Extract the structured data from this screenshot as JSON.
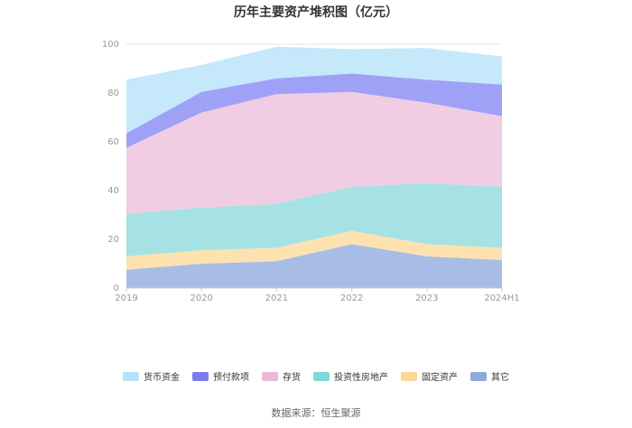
{
  "chart_data": {
    "type": "area",
    "title": "历年主要资产堆积图（亿元）",
    "categories": [
      "2019",
      "2020",
      "2021",
      "2022",
      "2023",
      "2024H1"
    ],
    "ylim": [
      0,
      100
    ],
    "yticks": [
      "0",
      "20",
      "40",
      "60",
      "80",
      "100"
    ],
    "stacked": true,
    "grid": true,
    "legend_position": "bottom",
    "series": [
      {
        "name": "其它",
        "values": [
          7.5,
          10.0,
          11.0,
          18.0,
          13.0,
          11.5
        ],
        "color": "#a8bde6"
      },
      {
        "name": "固定资产",
        "values": [
          5.5,
          5.5,
          5.5,
          5.5,
          5.0,
          5.0
        ],
        "color": "#fde2b0"
      },
      {
        "name": "投资性房地产",
        "values": [
          17.5,
          17.5,
          18.0,
          18.0,
          25.0,
          25.0
        ],
        "color": "#a6e2e3"
      },
      {
        "name": "存货",
        "values": [
          27.0,
          39.0,
          45.0,
          39.0,
          33.0,
          29.0
        ],
        "color": "#f0cde3"
      },
      {
        "name": "预付款项",
        "values": [
          6.0,
          8.5,
          6.5,
          7.5,
          9.5,
          13.0
        ],
        "color": "#9fa1f6"
      },
      {
        "name": "货币资金",
        "values": [
          22.0,
          11.0,
          13.0,
          10.0,
          13.0,
          11.5
        ],
        "color": "#c5e8fb"
      }
    ],
    "legend": [
      {
        "name": "货币资金",
        "color": "#b5e3fb"
      },
      {
        "name": "预付款项",
        "color": "#7a7cf0"
      },
      {
        "name": "存货",
        "color": "#eab9d8"
      },
      {
        "name": "投资性房地产",
        "color": "#7fd8d9"
      },
      {
        "name": "固定资产",
        "color": "#fdd594"
      },
      {
        "name": "其它",
        "color": "#8fa9dc"
      }
    ],
    "source": "数据来源：恒生聚源"
  }
}
